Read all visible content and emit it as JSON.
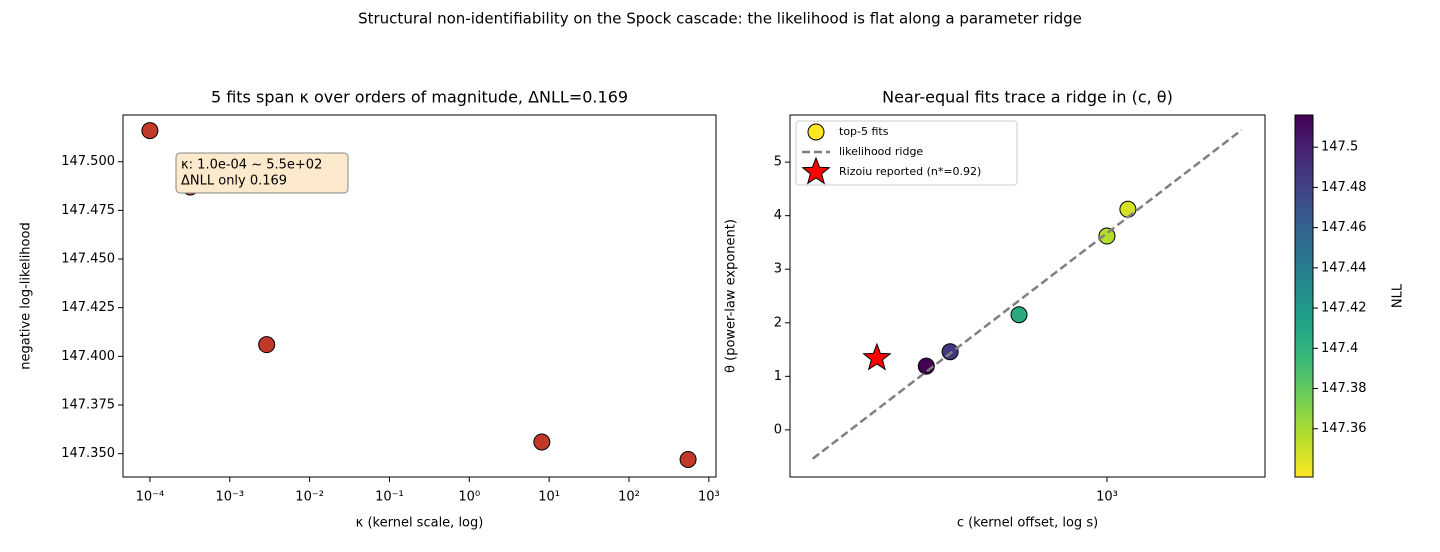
{
  "title": "Structural non-identifiability on the Spock cascade: the likelihood is flat along a parameter ridge",
  "chart_data": [
    {
      "type": "scatter",
      "title": "5 fits span κ over orders of magnitude, ΔNLL=0.169",
      "xlabel": "κ (kernel scale, log)",
      "ylabel": "negative log-likelihood",
      "xscale": "log",
      "xlim": [
        4.6e-05,
        1230
      ],
      "xticks": [
        {
          "value": 0.0001,
          "label": "10⁻⁴"
        },
        {
          "value": 0.001,
          "label": "10⁻³"
        },
        {
          "value": 0.01,
          "label": "10⁻²"
        },
        {
          "value": 0.1,
          "label": "10⁻¹"
        },
        {
          "value": 1,
          "label": "10⁰"
        },
        {
          "value": 10,
          "label": "10¹"
        },
        {
          "value": 100,
          "label": "10²"
        },
        {
          "value": 1000,
          "label": "10³"
        }
      ],
      "ylim": [
        147.338,
        147.524
      ],
      "yticks": [
        {
          "value": 147.35,
          "label": "147.350"
        },
        147.375,
        {
          "value": 147.4,
          "label": "147.400"
        },
        147.425,
        {
          "value": 147.45,
          "label": "147.450"
        },
        147.475,
        {
          "value": 147.5,
          "label": "147.500"
        }
      ],
      "series": [
        {
          "color": "#c0392b",
          "x": [
            0.0001,
            0.00032,
            0.0029,
            8.1,
            550
          ],
          "values": [
            147.516,
            147.487,
            147.406,
            147.356,
            147.347
          ]
        }
      ],
      "annotation": [
        "κ: 1.0e-04 ~ 5.5e+02",
        "ΔNLL only 0.169"
      ]
    },
    {
      "type": "scatter",
      "title": "Near-equal fits trace a ridge in (c, θ)",
      "xlabel": "c (kernel offset, log s)",
      "ylabel": "θ (power-law exponent)",
      "xscale": "log",
      "xlim": [
        153,
        2550
      ],
      "xticks": [
        {
          "value": 1000,
          "label": "10³"
        }
      ],
      "ylim": [
        -0.88,
        5.88
      ],
      "yticks": [
        0,
        1,
        2,
        3,
        4,
        5
      ],
      "legend": "upper left",
      "series": [
        {
          "name": "top-5 fits",
          "marker": "circle",
          "x": [
            343,
            395,
            594,
            1000,
            1132
          ],
          "values": [
            1.19,
            1.46,
            2.15,
            3.62,
            4.12
          ],
          "nll": [
            147.516,
            147.487,
            147.406,
            147.356,
            147.347
          ]
        },
        {
          "name": "likelihood ridge",
          "marker": "line",
          "color": "#808080",
          "x": [
            175,
            2220
          ],
          "values": [
            -0.54,
            5.6
          ]
        },
        {
          "name": "Rizoiu reported (n*=0.92)",
          "marker": "star",
          "color": "#ff0000",
          "x": [
            256
          ],
          "values": [
            1.34
          ]
        }
      ],
      "colorbar": {
        "label": "NLL",
        "cmap": "viridis_r",
        "lim": [
          147.336,
          147.516
        ],
        "ticks": [
          147.36,
          147.38,
          147.4,
          147.42,
          147.44,
          147.46,
          147.48,
          147.5
        ]
      }
    }
  ]
}
